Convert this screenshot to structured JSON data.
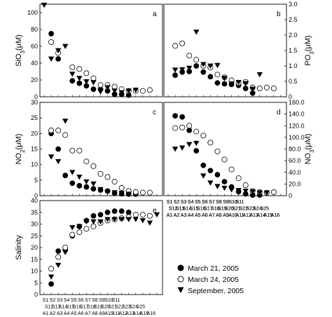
{
  "chart_data": [
    {
      "type": "scatter",
      "panel": "a",
      "ylabel": "SiO3(μM)",
      "ylim": [
        0,
        110
      ],
      "yticks": [
        0,
        20,
        40,
        60,
        80,
        100
      ],
      "x_shared_with": "b",
      "series": [
        {
          "name": "March 21, 2005",
          "points": [
            [
              1,
              75
            ],
            [
              2,
              45
            ],
            [
              4,
              19
            ],
            [
              5,
              16
            ],
            [
              6,
              13
            ],
            [
              7,
              9
            ],
            [
              8,
              9
            ],
            [
              9,
              7
            ],
            [
              10,
              3
            ],
            [
              11,
              3
            ],
            [
              12,
              2
            ]
          ]
        },
        {
          "name": "March 24, 2005",
          "points": [
            [
              1,
              65
            ],
            [
              2,
              52
            ],
            [
              4,
              35
            ],
            [
              5,
              33
            ],
            [
              6,
              28
            ],
            [
              7,
              22
            ],
            [
              8,
              14
            ],
            [
              9,
              14
            ],
            [
              10,
              12
            ],
            [
              11,
              9
            ],
            [
              12,
              7
            ],
            [
              13,
              7
            ],
            [
              14,
              7
            ],
            [
              15,
              8
            ]
          ]
        },
        {
          "name": "September, 2005",
          "points": [
            [
              0,
              109
            ],
            [
              1,
              45
            ],
            [
              2,
              55
            ],
            [
              3,
              60
            ],
            [
              4,
              27
            ],
            [
              5,
              22
            ],
            [
              6,
              18
            ],
            [
              7,
              17
            ],
            [
              8,
              6
            ],
            [
              9,
              11
            ],
            [
              10,
              7
            ],
            [
              11,
              5
            ],
            [
              12,
              7
            ],
            [
              13,
              8
            ]
          ]
        }
      ]
    },
    {
      "type": "scatter",
      "panel": "b",
      "ylabel": "PO3(μM)",
      "ylim": [
        0,
        3.0
      ],
      "yticks": [
        0,
        0.5,
        1.0,
        1.5,
        2.0,
        2.5,
        3.0
      ],
      "xticklabels_rows": [
        [
          "S1",
          "S2",
          "S3",
          "S4",
          "S5",
          "S6",
          "S7",
          "S8",
          "S9",
          "S10",
          "S11"
        ],
        [
          "S12",
          "S13",
          "S14",
          "S15",
          "S16",
          "S17",
          "S18",
          "S19",
          "S20",
          "S21",
          "S22",
          "S23",
          "S24",
          "S25"
        ],
        [
          "A1",
          "A2",
          "A3",
          "A4",
          "A5",
          "A6",
          "A7",
          "A8",
          "A9",
          "A10",
          "A11",
          "A12",
          "A13",
          "A14",
          "A15",
          "A16"
        ]
      ],
      "series": [
        {
          "name": "March 21, 2005",
          "points": [
            [
              1,
              0.7
            ],
            [
              2,
              0.8
            ],
            [
              3,
              0.82
            ],
            [
              4,
              1.0
            ],
            [
              5,
              0.8
            ],
            [
              6,
              0.65
            ],
            [
              7,
              0.45
            ],
            [
              8,
              0.42
            ],
            [
              9,
              0.4
            ],
            [
              10,
              0.37
            ],
            [
              11,
              0.27
            ],
            [
              12,
              0.12
            ]
          ]
        },
        {
          "name": "March 24, 2005",
          "points": [
            [
              1,
              1.65
            ],
            [
              2,
              1.73
            ],
            [
              3,
              1.33
            ],
            [
              4,
              1.2
            ],
            [
              5,
              1.0
            ],
            [
              6,
              0.95
            ],
            [
              7,
              0.72
            ],
            [
              8,
              0.63
            ],
            [
              9,
              0.53
            ],
            [
              10,
              0.45
            ],
            [
              11,
              0.48
            ],
            [
              12,
              0.3
            ],
            [
              13,
              0.27
            ],
            [
              14,
              0.3
            ],
            [
              15,
              0.27
            ]
          ]
        },
        {
          "name": "September, 2005",
          "points": [
            [
              1,
              0.87
            ],
            [
              2,
              0.88
            ],
            [
              3,
              0.93
            ],
            [
              4,
              2.1
            ],
            [
              5,
              1.05
            ],
            [
              6,
              1.0
            ],
            [
              7,
              1.02
            ],
            [
              8,
              0.6
            ],
            [
              9,
              0.42
            ],
            [
              10,
              0.47
            ],
            [
              11,
              0.43
            ],
            [
              12,
              0.25
            ],
            [
              13,
              0.72
            ]
          ]
        }
      ]
    },
    {
      "type": "scatter",
      "panel": "c",
      "ylabel": "NO2(μM)",
      "ylim": [
        0,
        30
      ],
      "yticks": [
        0,
        5,
        10,
        15,
        20,
        25,
        30
      ],
      "x_shared_with": "d",
      "series": [
        {
          "name": "March 21, 2005",
          "points": [
            [
              1,
              20
            ],
            [
              2,
              15
            ],
            [
              3,
              6.5
            ],
            [
              4,
              4.0
            ],
            [
              5,
              3.2
            ],
            [
              6,
              2.8
            ],
            [
              7,
              2.2
            ],
            [
              8,
              1.8
            ],
            [
              9,
              1.5
            ],
            [
              10,
              0.8
            ],
            [
              11,
              0.6
            ],
            [
              12,
              0.5
            ],
            [
              13,
              0.5
            ]
          ]
        },
        {
          "name": "March 24, 2005",
          "points": [
            [
              1,
              21
            ],
            [
              2,
              21
            ],
            [
              3,
              19.5
            ],
            [
              4,
              14.5
            ],
            [
              5,
              14.5
            ],
            [
              6,
              11
            ],
            [
              7,
              9.5
            ],
            [
              8,
              7
            ],
            [
              9,
              6
            ],
            [
              10,
              4.5
            ],
            [
              11,
              2.5
            ],
            [
              12,
              1.5
            ],
            [
              13,
              1.2
            ],
            [
              14,
              1
            ],
            [
              15,
              1
            ]
          ]
        },
        {
          "name": "September, 2005",
          "points": [
            [
              1,
              12.5
            ],
            [
              2,
              11
            ],
            [
              3,
              24
            ],
            [
              4,
              7.5
            ],
            [
              5,
              6
            ],
            [
              6,
              4.5
            ],
            [
              7,
              3.8
            ],
            [
              8,
              2
            ],
            [
              9,
              1.2
            ],
            [
              10,
              1
            ],
            [
              11,
              0.8
            ],
            [
              12,
              0.5
            ]
          ]
        }
      ]
    },
    {
      "type": "scatter",
      "panel": "d",
      "ylabel": "NO3(μM)",
      "ylim": [
        0,
        160
      ],
      "yticks": [
        0,
        20,
        40,
        60,
        80,
        100,
        120,
        140,
        160
      ],
      "xticklabels_rows": [
        [
          "S1",
          "S2",
          "S3",
          "S4",
          "S5",
          "S6",
          "S7",
          "S8",
          "S9",
          "S10",
          "S11"
        ],
        [
          "S12",
          "S13",
          "S14",
          "S15",
          "S16",
          "S17",
          "S18",
          "S19",
          "S20",
          "S21",
          "S22",
          "S23",
          "S24",
          "S25"
        ],
        [
          "A1",
          "A2",
          "A3",
          "A4",
          "A5",
          "A6",
          "A7",
          "A8",
          "A9",
          "A10",
          "A11",
          "A12",
          "A13",
          "A14",
          "A15",
          "A16"
        ]
      ],
      "series": [
        {
          "name": "March 21, 2005",
          "points": [
            [
              1,
              137
            ],
            [
              2,
              135
            ],
            [
              3,
              112
            ],
            [
              4,
              77
            ],
            [
              5,
              52
            ],
            [
              6,
              43
            ],
            [
              7,
              36
            ],
            [
              8,
              24
            ],
            [
              9,
              15
            ],
            [
              10,
              7
            ],
            [
              11,
              3
            ],
            [
              12,
              1
            ],
            [
              13,
              1
            ]
          ]
        },
        {
          "name": "March 24, 2005",
          "points": [
            [
              1,
              116
            ],
            [
              2,
              117
            ],
            [
              3,
              120
            ],
            [
              4,
              110
            ],
            [
              5,
              103
            ],
            [
              6,
              91
            ],
            [
              7,
              76
            ],
            [
              8,
              62
            ],
            [
              9,
              45
            ],
            [
              10,
              30
            ],
            [
              11,
              18
            ],
            [
              12,
              8
            ],
            [
              13,
              6
            ],
            [
              14,
              5
            ],
            [
              15,
              6
            ]
          ]
        },
        {
          "name": "September, 2005",
          "points": [
            [
              1,
              80
            ],
            [
              2,
              82
            ],
            [
              3,
              88
            ],
            [
              4,
              90
            ],
            [
              5,
              34
            ],
            [
              6,
              22
            ],
            [
              7,
              16
            ],
            [
              8,
              13
            ],
            [
              9,
              10
            ],
            [
              10,
              9
            ],
            [
              11,
              8
            ],
            [
              12,
              7
            ],
            [
              13,
              5
            ],
            [
              14,
              5
            ]
          ]
        }
      ]
    },
    {
      "type": "scatter",
      "panel": "e",
      "ylabel": "Salinity",
      "ylim": [
        0,
        40
      ],
      "yticks": [
        0,
        5,
        10,
        15,
        20,
        25,
        30,
        35,
        40
      ],
      "xticklabels_rows": [
        [
          "S1",
          "S2",
          "S3",
          "S4",
          "S5",
          "S6",
          "S7",
          "S8",
          "S9",
          "S10",
          "S11"
        ],
        [
          "S12",
          "S13",
          "S14",
          "S15",
          "S16",
          "S17",
          "S18",
          "S19",
          "S20",
          "S21",
          "S22",
          "S23",
          "S24",
          "S25"
        ],
        [
          "A1",
          "A2",
          "A3",
          "A4",
          "A5",
          "A6",
          "A7",
          "A8",
          "A9",
          "A10",
          "A11",
          "A12",
          "A13",
          "A14",
          "A15",
          "A16"
        ]
      ],
      "series": [
        {
          "name": "March 21, 2005",
          "points": [
            [
              1,
              4.5
            ],
            [
              2,
              18.5
            ],
            [
              3,
              19
            ],
            [
              4,
              25
            ],
            [
              5,
              29
            ],
            [
              6,
              31.5
            ],
            [
              7,
              33.5
            ],
            [
              8,
              34
            ],
            [
              9,
              35
            ],
            [
              10,
              35.5
            ],
            [
              11,
              35.5
            ],
            [
              12,
              35
            ]
          ]
        },
        {
          "name": "March 24, 2005",
          "points": [
            [
              1,
              11
            ],
            [
              2,
              16
            ],
            [
              3,
              20
            ],
            [
              4,
              25.5
            ],
            [
              5,
              26.5
            ],
            [
              6,
              28
            ],
            [
              7,
              29
            ],
            [
              8,
              30.5
            ],
            [
              9,
              31.5
            ],
            [
              10,
              32
            ],
            [
              11,
              32.5
            ],
            [
              12,
              33
            ],
            [
              13,
              34
            ],
            [
              14,
              34
            ],
            [
              15,
              33.5
            ]
          ]
        },
        {
          "name": "September, 2005",
          "points": [
            [
              1,
              7.5
            ],
            [
              2,
              12.5
            ],
            [
              3,
              18
            ],
            [
              4,
              28.5
            ],
            [
              5,
              29
            ],
            [
              6,
              31
            ],
            [
              7,
              31
            ],
            [
              8,
              31
            ],
            [
              9,
              32
            ],
            [
              10,
              32
            ],
            [
              11,
              32
            ],
            [
              12,
              32
            ],
            [
              13,
              32
            ],
            [
              14,
              31.5
            ],
            [
              15,
              30.5
            ],
            [
              16,
              34
            ]
          ]
        }
      ]
    }
  ],
  "legend": {
    "entries": [
      {
        "label": "March 21, 2005",
        "marker": "filled-circle"
      },
      {
        "label": "March 24, 2005",
        "marker": "open-circle"
      },
      {
        "label": "September, 2005",
        "marker": "filled-triangle-down"
      }
    ]
  }
}
